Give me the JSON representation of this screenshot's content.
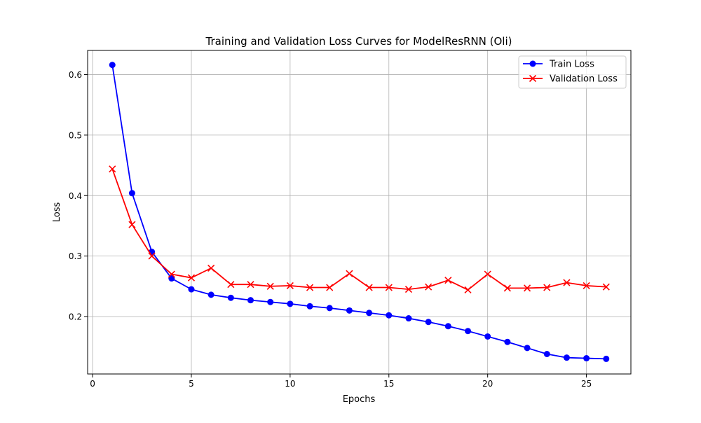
{
  "chart_data": {
    "type": "line",
    "title": "Training and Validation Loss Curves for ModelResRNN (Oli)",
    "xlabel": "Epochs",
    "ylabel": "Loss",
    "xlim": [
      -0.25,
      27.25
    ],
    "ylim": [
      0.105,
      0.64
    ],
    "xticks": [
      0,
      5,
      10,
      15,
      20,
      25
    ],
    "yticks": [
      0.2,
      0.3,
      0.4,
      0.5,
      0.6
    ],
    "xtick_labels": [
      "0",
      "5",
      "10",
      "15",
      "20",
      "25"
    ],
    "ytick_labels": [
      "0.2",
      "0.3",
      "0.4",
      "0.5",
      "0.6"
    ],
    "grid": true,
    "legend": "top-right",
    "x": [
      1,
      2,
      3,
      4,
      5,
      6,
      7,
      8,
      9,
      10,
      11,
      12,
      13,
      14,
      15,
      16,
      17,
      18,
      19,
      20,
      21,
      22,
      23,
      24,
      25,
      26
    ],
    "series": [
      {
        "name": "Train Loss",
        "color": "#0000ff",
        "marker": "circle",
        "values": [
          0.616,
          0.404,
          0.307,
          0.263,
          0.245,
          0.236,
          0.231,
          0.227,
          0.224,
          0.221,
          0.217,
          0.214,
          0.21,
          0.206,
          0.202,
          0.197,
          0.191,
          0.184,
          0.176,
          0.167,
          0.158,
          0.148,
          0.138,
          0.132,
          0.131,
          0.13
        ]
      },
      {
        "name": "Validation Loss",
        "color": "#ff0000",
        "marker": "x",
        "values": [
          0.444,
          0.352,
          0.3,
          0.27,
          0.264,
          0.28,
          0.253,
          0.253,
          0.25,
          0.251,
          0.248,
          0.248,
          0.271,
          0.248,
          0.248,
          0.245,
          0.249,
          0.26,
          0.244,
          0.27,
          0.247,
          0.247,
          0.248,
          0.256,
          0.251,
          0.249
        ]
      }
    ]
  }
}
